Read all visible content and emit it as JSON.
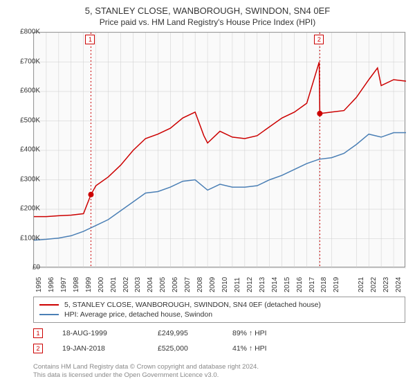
{
  "title": "5, STANLEY CLOSE, WANBOROUGH, SWINDON, SN4 0EF",
  "subtitle": "Price paid vs. HM Land Registry's House Price Index (HPI)",
  "chart": {
    "type": "line",
    "background_color": "#fafafa",
    "border_color": "#888",
    "grid_color": "#cccccc",
    "xlim": [
      1995,
      2025
    ],
    "ylim": [
      0,
      800000
    ],
    "ytick_step": 100000,
    "yticks_labels": [
      "£0",
      "£100K",
      "£200K",
      "£300K",
      "£400K",
      "£500K",
      "£600K",
      "£700K",
      "£800K"
    ],
    "xticks": [
      1995,
      1996,
      1997,
      1998,
      1999,
      2000,
      2001,
      2002,
      2003,
      2004,
      2005,
      2006,
      2007,
      2008,
      2009,
      2010,
      2011,
      2012,
      2013,
      2014,
      2015,
      2016,
      2017,
      2018,
      2019,
      2021,
      2022,
      2023,
      2024
    ],
    "series": [
      {
        "name": "property",
        "label": "5, STANLEY CLOSE, WANBOROUGH, SWINDON, SN4 0EF (detached house)",
        "color": "#cc0000",
        "line_width": 1.5,
        "x": [
          1995,
          1996,
          1997,
          1998,
          1999,
          1999.6,
          2000,
          2001,
          2002,
          2003,
          2004,
          2005,
          2006,
          2007,
          2008,
          2008.7,
          2009,
          2010,
          2011,
          2012,
          2013,
          2014,
          2015,
          2016,
          2017,
          2018,
          2018.05,
          2019,
          2020,
          2021,
          2022,
          2022.7,
          2023,
          2024,
          2025
        ],
        "y": [
          175000,
          175000,
          178000,
          180000,
          185000,
          250000,
          280000,
          310000,
          350000,
          400000,
          440000,
          455000,
          475000,
          510000,
          530000,
          450000,
          425000,
          465000,
          445000,
          440000,
          450000,
          480000,
          510000,
          530000,
          560000,
          700000,
          525000,
          530000,
          535000,
          580000,
          640000,
          680000,
          620000,
          640000,
          635000
        ]
      },
      {
        "name": "hpi",
        "label": "HPI: Average price, detached house, Swindon",
        "color": "#4a7fb5",
        "line_width": 1.5,
        "x": [
          1995,
          1996,
          1997,
          1998,
          1999,
          2000,
          2001,
          2002,
          2003,
          2004,
          2005,
          2006,
          2007,
          2008,
          2009,
          2010,
          2011,
          2012,
          2013,
          2014,
          2015,
          2016,
          2017,
          2018,
          2019,
          2020,
          2021,
          2022,
          2023,
          2024,
          2025
        ],
        "y": [
          95000,
          98000,
          102000,
          110000,
          125000,
          145000,
          165000,
          195000,
          225000,
          255000,
          260000,
          275000,
          295000,
          300000,
          265000,
          285000,
          275000,
          275000,
          280000,
          300000,
          315000,
          335000,
          355000,
          370000,
          375000,
          390000,
          420000,
          455000,
          445000,
          460000,
          460000
        ]
      }
    ],
    "markers": [
      {
        "n": "1",
        "x": 1999.6,
        "y": 249995,
        "color": "#cc0000"
      },
      {
        "n": "2",
        "x": 2018.05,
        "y": 525000,
        "color": "#cc0000"
      }
    ],
    "vlines": [
      {
        "x": 1999.6,
        "color": "#cc0000",
        "dash": "2,3"
      },
      {
        "x": 2018.05,
        "color": "#cc0000",
        "dash": "2,3"
      }
    ],
    "point_radius": 4,
    "tick_fontsize": 10
  },
  "legend": {
    "rows": [
      {
        "color": "#cc0000",
        "text": "5, STANLEY CLOSE, WANBOROUGH, SWINDON, SN4 0EF (detached house)"
      },
      {
        "color": "#4a7fb5",
        "text": "HPI: Average price, detached house, Swindon"
      }
    ]
  },
  "events": [
    {
      "n": "1",
      "date": "18-AUG-1999",
      "price": "£249,995",
      "delta": "89% ↑ HPI"
    },
    {
      "n": "2",
      "date": "19-JAN-2018",
      "price": "£525,000",
      "delta": "41% ↑ HPI"
    }
  ],
  "footer": {
    "line1": "Contains HM Land Registry data © Crown copyright and database right 2024.",
    "line2": "This data is licensed under the Open Government Licence v3.0."
  }
}
